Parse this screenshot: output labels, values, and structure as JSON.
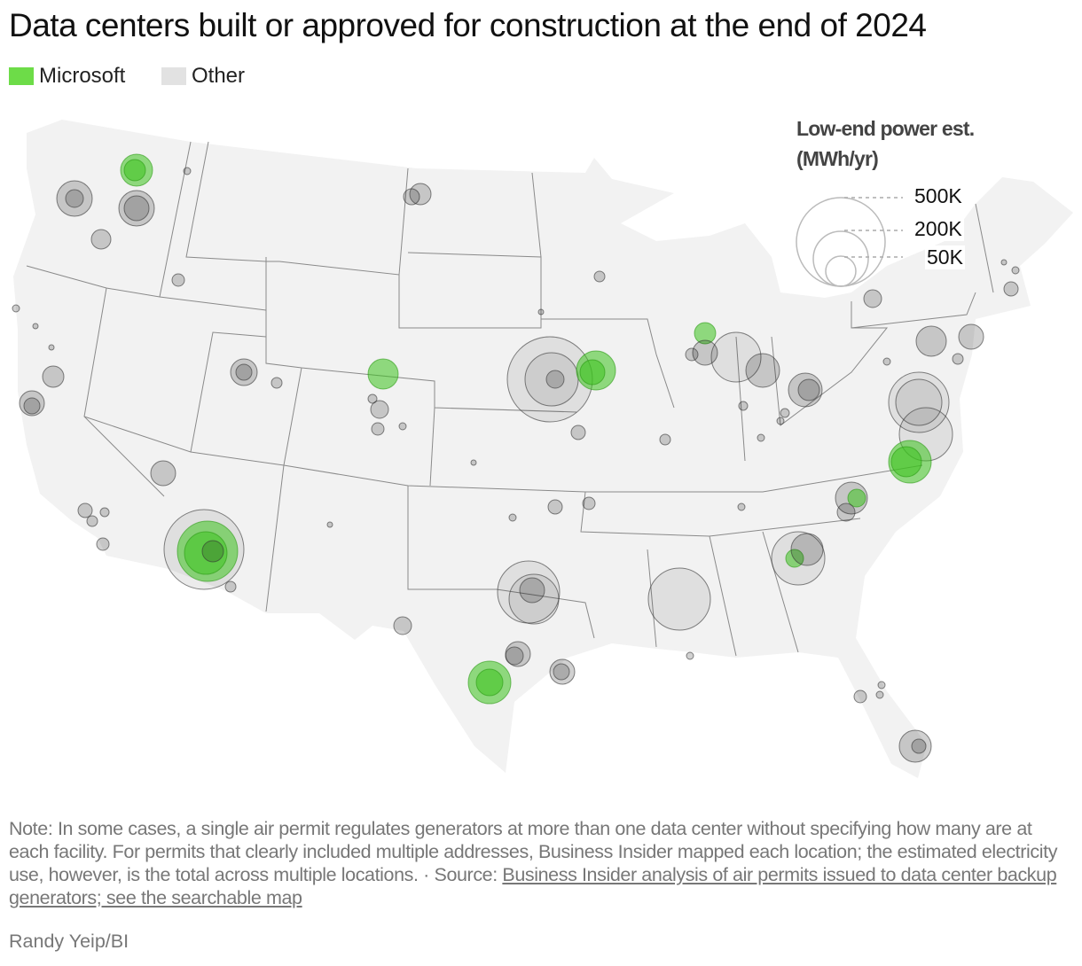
{
  "title": "Data centers built or approved for construction at the end of 2024",
  "legend": [
    {
      "label": "Microsoft",
      "color": "#6ddc48"
    },
    {
      "label": "Other",
      "color": "#e2e2e2"
    }
  ],
  "size_legend": {
    "title_line1": "Low-end power est.",
    "title_line2": "(MWh/yr)",
    "values": [
      "500K",
      "200K",
      "50K"
    ]
  },
  "note": "Note: In some cases, a single air permit regulates generators at more than one data center without specifying how many are at each facility. For permits that clearly included multiple addresses, Business Insider mapped each location; the estimated electricity use, however, is the total across multiple locations. · Source: ",
  "source_link": "Business Insider analysis of air permits issued to data center backup generators; see the searchable map",
  "credit": "Randy Yeip/BI",
  "colors": {
    "microsoft": "#3cc21e",
    "other": "#000000",
    "land": "#f2f2f2",
    "border": "#8a8a8a"
  }
}
